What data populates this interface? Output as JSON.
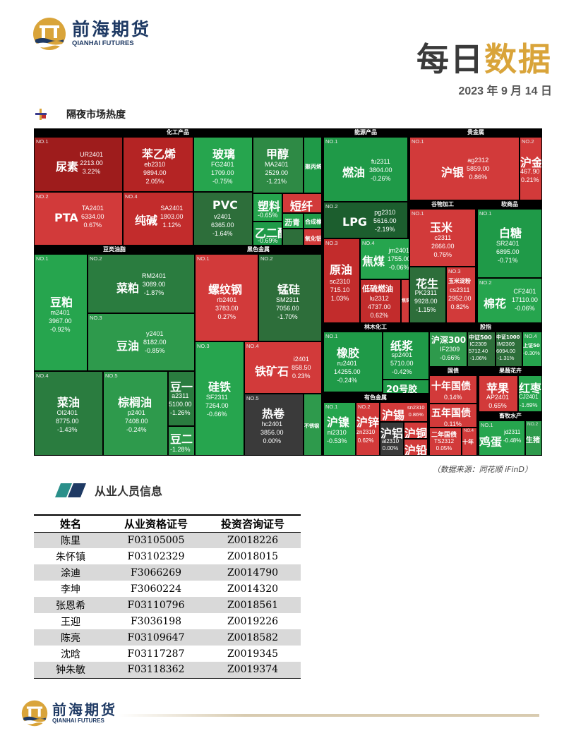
{
  "logo": {
    "cn": "前海期货",
    "en": "QIANHAI FUTURES"
  },
  "header": {
    "title_part1": "每日",
    "title_part2": "数据",
    "date": "2023 年 9 月 14 日"
  },
  "section1": {
    "title": "隔夜市场热度"
  },
  "treemap": {
    "groups": {
      "chem": "化工产品",
      "energy": "能源产品",
      "precious": "贵金属",
      "grain": "谷物加工",
      "soft": "软商品",
      "oilseed": "豆类油脂",
      "ferrous": "黑色金属",
      "forest": "林木化工",
      "equity": "股指",
      "bond": "国债",
      "fruit": "果蔬花卉",
      "nonferrous": "有色金属",
      "livestock": "畜牧水产"
    },
    "tiles": {
      "urea": {
        "no": "NO.1",
        "name": "尿素",
        "code": "UR2401",
        "price": "2213.00",
        "chg": "3.22%"
      },
      "pta": {
        "no": "NO.2",
        "name": "PTA",
        "code": "TA2401",
        "price": "6334.00",
        "chg": "0.67%"
      },
      "styrene": {
        "name": "苯乙烯",
        "code": "eb2310",
        "price": "9894.00",
        "chg": "2.05%"
      },
      "soda": {
        "no": "NO.4",
        "name": "纯碱",
        "code": "SA2401",
        "price": "1803.00",
        "chg": "1.12%"
      },
      "glass": {
        "name": "玻璃",
        "code": "FG2401",
        "price": "1709.00",
        "chg": "-0.75%"
      },
      "pvc": {
        "name": "PVC",
        "code": "v2401",
        "price": "6365.00",
        "chg": "-1.64%"
      },
      "methanol": {
        "name": "甲醇",
        "code": "MA2401",
        "price": "2529.00",
        "chg": "-1.21%"
      },
      "plastic": {
        "name": "塑料",
        "chg": "-0.65%"
      },
      "shortfiber": {
        "name": "短纤"
      },
      "eg": {
        "name": "乙二醇",
        "chg": "-0.69%"
      },
      "asphalt": {
        "name": "沥青"
      },
      "pp": {
        "name": "聚丙烯"
      },
      "rubber20": {
        "name": "合成橡胶"
      },
      "caustic": {
        "name": "氧化铝"
      },
      "fuoil": {
        "no": "NO.1",
        "name": "燃油",
        "code": "fu2311",
        "price": "3804.00",
        "chg": "-0.26%"
      },
      "lpg": {
        "no": "NO.2",
        "name": "LPG",
        "code": "pg2310",
        "price": "5616.00",
        "chg": "-2.19%"
      },
      "crude": {
        "no": "NO.3",
        "name": "原油",
        "code": "sc2310",
        "price": "715.10",
        "chg": "1.03%"
      },
      "coke": {
        "no": "NO.4",
        "name": "焦煤",
        "code": "jm2401",
        "price": "1755.00",
        "chg": "-0.06%"
      },
      "lsfo": {
        "name": "低硫燃油",
        "code": "lu2312",
        "price": "4737.00",
        "chg": "0.62%"
      },
      "coal": {
        "name": "焦炭"
      },
      "silver": {
        "no": "NO.1",
        "name": "沪银",
        "code": "ag2312",
        "price": "5859.00",
        "chg": "0.86%"
      },
      "gold": {
        "no": "NO.2",
        "name": "沪金",
        "price": "467.90",
        "chg": "0.21%"
      },
      "corn": {
        "no": "NO.1",
        "name": "玉米",
        "code": "c2311",
        "price": "2666.00",
        "chg": "0.76%"
      },
      "peanut": {
        "name": "花生",
        "code": "PK2311",
        "price": "9928.00",
        "chg": "-1.15%"
      },
      "cornstarch": {
        "no": "NO.3",
        "name": "玉米淀粉",
        "code": "cs2311",
        "price": "2952.00",
        "chg": "0.82%"
      },
      "sugar": {
        "no": "NO.1",
        "name": "白糖",
        "code": "SR2401",
        "price": "6895.00",
        "chg": "-0.71%"
      },
      "cotton": {
        "no": "NO.2",
        "name": "棉花",
        "code": "CF2401",
        "price": "17110.00",
        "chg": "-0.06%"
      },
      "soymeal": {
        "no": "NO.1",
        "name": "豆粕",
        "code": "m2401",
        "price": "3967.00",
        "chg": "-0.92%"
      },
      "rapemeal": {
        "no": "NO.2",
        "name": "菜粕",
        "code": "RM2401",
        "price": "3089.00",
        "chg": "-1.87%"
      },
      "soyoil": {
        "no": "NO.3",
        "name": "豆油",
        "code": "y2401",
        "price": "8182.00",
        "chg": "-0.85%"
      },
      "rapeoil": {
        "no": "NO.4",
        "name": "菜油",
        "code": "OI2401",
        "price": "8775.00",
        "chg": "-1.43%"
      },
      "palm": {
        "no": "NO.5",
        "name": "棕榈油",
        "code": "p2401",
        "price": "7408.00",
        "chg": "-0.24%"
      },
      "soy1": {
        "name": "豆一",
        "code": "a2311",
        "price": "5100.00",
        "chg": "-1.26%"
      },
      "soy2": {
        "name": "豆二",
        "chg": "-1.28%"
      },
      "rebar": {
        "no": "NO.1",
        "name": "螺纹钢",
        "code": "rb2401",
        "price": "3783.00",
        "chg": "0.27%"
      },
      "mnsi": {
        "no": "NO.2",
        "name": "锰硅",
        "code": "SM2311",
        "price": "7056.00",
        "chg": "-1.70%"
      },
      "fesi": {
        "no": "NO.3",
        "name": "硅铁",
        "code": "SF2311",
        "price": "7264.00",
        "chg": "-0.66%"
      },
      "iron": {
        "no": "NO.4",
        "name": "铁矿石",
        "code": "i2401",
        "price": "858.50",
        "chg": "0.23%"
      },
      "hotcoil": {
        "no": "NO.5",
        "name": "热卷",
        "code": "hc2401",
        "price": "3856.00",
        "chg": "0.00%"
      },
      "stainless": {
        "name": "不锈钢"
      },
      "rubber": {
        "no": "NO.1",
        "name": "橡胶",
        "code": "ru2401",
        "price": "14255.00",
        "chg": "-0.24%"
      },
      "pulp": {
        "name": "纸浆",
        "code": "sp2401",
        "price": "5710.00",
        "chg": "-0.42%"
      },
      "nr20": {
        "name": "20号胶"
      },
      "hs300": {
        "name": "沪深300",
        "code": "IF2309",
        "chg": "-0.66%"
      },
      "zz500": {
        "name": "中证500",
        "code": "IC2309",
        "price": "5712.40",
        "chg": "-1.06%"
      },
      "zz1000": {
        "name": "中证1000",
        "code": "IM2309",
        "price": "6094.00",
        "chg": "-1.31%"
      },
      "sz50": {
        "no": "NO.4",
        "name": "上证50",
        "chg": "-0.30%"
      },
      "t10": {
        "name": "十年国债",
        "chg": "0.14%"
      },
      "t5": {
        "name": "五年国债",
        "chg": "0.11%"
      },
      "t2": {
        "name": "二年国债",
        "code": "TS2312",
        "chg": "0.05%"
      },
      "t30": {
        "no": "NO.4",
        "name": "十年"
      },
      "apple": {
        "name": "苹果",
        "code": "AP2401",
        "chg": "0.65%"
      },
      "jujube": {
        "name": "红枣",
        "code": "CJ2401",
        "chg": "-1.69%"
      },
      "nickel": {
        "no": "NO.1",
        "name": "沪镍",
        "code": "ni2310",
        "chg": "-0.53%"
      },
      "zinc": {
        "no": "NO.2",
        "name": "沪锌",
        "code": "zn2310",
        "chg": "0.62%"
      },
      "tin": {
        "name": "沪锡",
        "code": "sn2310",
        "chg": "0.86%"
      },
      "alu": {
        "name": "沪铝",
        "code": "al2310",
        "chg": "0.00%"
      },
      "copper": {
        "name": "沪铜"
      },
      "lead": {
        "name": "沪铅"
      },
      "egg": {
        "no": "NO.1",
        "name": "鸡蛋",
        "code": "jd2311",
        "chg": "-0.48%"
      },
      "hog": {
        "no": "NO.2",
        "name": "生猪"
      }
    }
  },
  "source_note": "（数据来源：同花顺 iFinD）",
  "section2": {
    "title": "从业人员信息"
  },
  "staff_table": {
    "headers": [
      "姓名",
      "从业资格证号",
      "投资咨询证号"
    ],
    "rows": [
      [
        "陈里",
        "F03105005",
        "Z0018226"
      ],
      [
        "朱怀镇",
        "F03102329",
        "Z0018015"
      ],
      [
        "涂迪",
        "F3066269",
        "Z0014790"
      ],
      [
        "李坤",
        "F3060224",
        "Z0014320"
      ],
      [
        "张恩希",
        "F03110796",
        "Z0018561"
      ],
      [
        "王迎",
        "F3036198",
        "Z0019226"
      ],
      [
        "陈亮",
        "F03109647",
        "Z0018582"
      ],
      [
        "沈晗",
        "F03117287",
        "Z0019345"
      ],
      [
        "钟朱敏",
        "F03118362",
        "Z0019374"
      ]
    ]
  },
  "colors": {
    "red_dark": "#9e1c1c",
    "red": "#d23a3a",
    "green": "#1f9a48",
    "green_dark": "#2d6e3a",
    "gray": "#3a3a3a",
    "gold": "#d9a43a",
    "navy": "#1f3a64"
  }
}
